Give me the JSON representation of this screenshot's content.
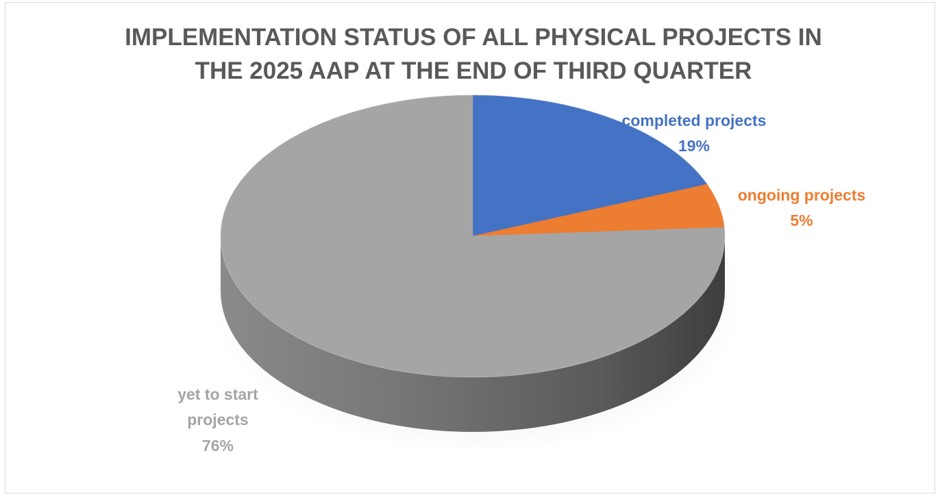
{
  "chart_data": {
    "type": "pie",
    "title_lines": [
      "IMPLEMENTATION STATUS OF ALL PHYSICAL PROJECTS IN",
      "THE 2025 AAP AT THE END OF THIRD QUARTER"
    ],
    "labels": [
      "completed projects",
      "ongoing projects",
      "yet to start projects"
    ],
    "values": [
      19,
      5,
      76
    ],
    "value_labels": [
      "19%",
      "5%",
      "76%"
    ],
    "colors": [
      "#4472c4",
      "#ed7d31",
      "#a5a5a5"
    ],
    "label_colors": [
      "#4472c4",
      "#ed7d31",
      "#a5a5a5"
    ],
    "style": "3d",
    "legend": "none"
  }
}
